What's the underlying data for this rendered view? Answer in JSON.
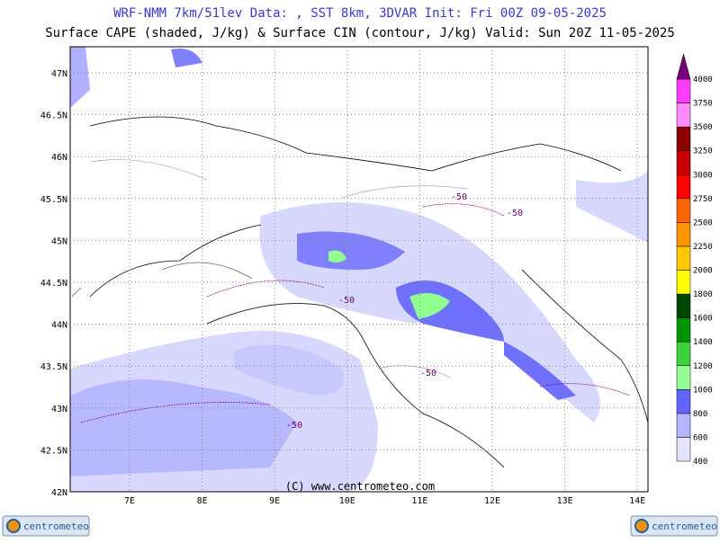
{
  "header": {
    "line1": "WRF-NMM 7km/51lev  Data: , SST 8km, 3DVAR  Init: Fri 00Z 09-05-2025",
    "line2": "Surface CAPE (shaded, J/kg) & Surface CIN (contour, J/kg)  Valid: Sun 20Z 11-05-2025"
  },
  "map": {
    "lat_labels": [
      "47N",
      "46.5N",
      "46N",
      "45.5N",
      "45N",
      "44.5N",
      "44N",
      "43.5N",
      "43N",
      "42.5N",
      "42N"
    ],
    "lon_labels": [
      "7E",
      "8E",
      "9E",
      "10E",
      "11E",
      "12E",
      "13E",
      "14E"
    ],
    "contour_labels": [
      "-50",
      "-50",
      "-50",
      "-50",
      "-50"
    ],
    "copyright": "(C) www.centrometeo.com"
  },
  "colorbar": {
    "labels": [
      400,
      600,
      800,
      1000,
      1200,
      1400,
      1600,
      1800,
      2000,
      2250,
      2500,
      2750,
      3000,
      3250,
      3500,
      3750,
      4000
    ],
    "colors": [
      "#e4e4ff",
      "#b4b4ff",
      "#6464ff",
      "#96ff96",
      "#3cd23c",
      "#009600",
      "#004600",
      "#ffff00",
      "#ffc800",
      "#ff9600",
      "#ff6400",
      "#ff0000",
      "#c80000",
      "#8c0000",
      "#ff8cff",
      "#ff3cff"
    ],
    "top_color": "#780078"
  },
  "logos": {
    "left": "centrometeo",
    "right": "centrometeo"
  }
}
